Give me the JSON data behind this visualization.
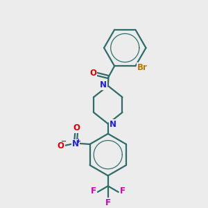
{
  "bg_color": "#ececec",
  "bond_color": "#2d6b6b",
  "bond_width": 1.6,
  "atom_colors": {
    "N": "#1a1aff",
    "O": "#dd0000",
    "Br": "#b87800",
    "F": "#cc00bb",
    "C": "#2d6b6b"
  },
  "font_size": 8.5,
  "fig_size": [
    3.0,
    3.0
  ],
  "dpi": 100
}
